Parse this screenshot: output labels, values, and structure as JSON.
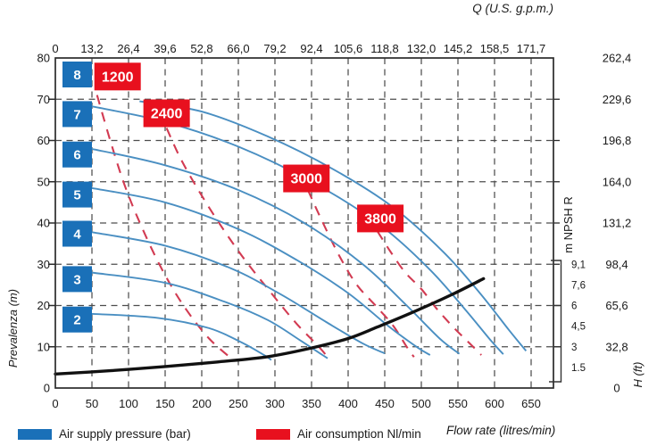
{
  "legend": {
    "air_supply_label": "Air supply pressure (bar)",
    "air_consumption_label": "Air consumption Nl/min"
  },
  "chart_data": {
    "type": "line",
    "title_top": "Q (U.S. g.p.m.)",
    "xlabel": "Flow rate (litres/min)",
    "ylabel_left": "Prevalenza (m)",
    "ylabel_right": "H (ft)",
    "npsh_axis_label": "m NPSH R",
    "xlim_litres_min": [
      0,
      680
    ],
    "ylim_m": [
      0,
      80
    ],
    "grid": true,
    "x_ticks_bottom_litres_min": [
      "0",
      "50",
      "100",
      "150",
      "200",
      "250",
      "300",
      "350",
      "400",
      "450",
      "500",
      "550",
      "600",
      "650"
    ],
    "x_ticks_top_usgpm": [
      "0",
      "13,2",
      "26,4",
      "39,6",
      "52,8",
      "66,0",
      "79,2",
      "92,4",
      "105,6",
      "118,8",
      "132,0",
      "145,2",
      "158,5",
      "171,7"
    ],
    "y_ticks_left_m": [
      "0",
      "10",
      "20",
      "30",
      "40",
      "50",
      "60",
      "70",
      "80"
    ],
    "y_ticks_right_ft": [
      "0",
      "32,8",
      "65,6",
      "98,4",
      "131,2",
      "164,0",
      "196,8",
      "229,6",
      "262,4"
    ],
    "npsh_scale_ticks": [
      {
        "label": "9,1",
        "at_m": 30
      },
      {
        "label": "7,6",
        "at_m": 25
      },
      {
        "label": "6",
        "at_m": 20
      },
      {
        "label": "4,5",
        "at_m": 15
      },
      {
        "label": "3",
        "at_m": 10
      },
      {
        "label": "1.5",
        "at_m": 5
      }
    ],
    "series_pressure_bar": [
      {
        "label": "8",
        "square_at_m": 76,
        "points": [
          [
            115,
            69.5
          ],
          [
            200,
            67
          ],
          [
            290,
            61
          ],
          [
            380,
            53
          ],
          [
            460,
            44
          ],
          [
            530,
            33
          ],
          [
            580,
            23
          ],
          [
            620,
            14
          ],
          [
            643,
            9
          ]
        ]
      },
      {
        "label": "7",
        "square_at_m": 66.4,
        "points": [
          [
            49,
            68.3
          ],
          [
            150,
            64.5
          ],
          [
            250,
            58.5
          ],
          [
            350,
            50
          ],
          [
            440,
            40
          ],
          [
            510,
            29
          ],
          [
            560,
            19
          ],
          [
            595,
            11.5
          ],
          [
            612,
            8.2
          ]
        ]
      },
      {
        "label": "6",
        "square_at_m": 56.6,
        "points": [
          [
            49,
            58
          ],
          [
            150,
            54
          ],
          [
            250,
            48
          ],
          [
            340,
            40
          ],
          [
            420,
            30
          ],
          [
            480,
            20
          ],
          [
            525,
            12
          ],
          [
            552,
            8.3
          ]
        ]
      },
      {
        "label": "5",
        "square_at_m": 46.9,
        "points": [
          [
            49,
            48.5
          ],
          [
            150,
            45
          ],
          [
            250,
            38.5
          ],
          [
            330,
            31
          ],
          [
            400,
            23
          ],
          [
            455,
            15
          ],
          [
            495,
            9.8
          ],
          [
            512,
            8
          ]
        ]
      },
      {
        "label": "4",
        "square_at_m": 37.4,
        "points": [
          [
            49,
            37.8
          ],
          [
            150,
            34.5
          ],
          [
            240,
            29
          ],
          [
            310,
            22.5
          ],
          [
            370,
            16
          ],
          [
            420,
            10.8
          ],
          [
            450,
            8.4
          ]
        ]
      },
      {
        "label": "3",
        "square_at_m": 26.4,
        "points": [
          [
            49,
            28
          ],
          [
            150,
            25.5
          ],
          [
            230,
            21
          ],
          [
            290,
            16.5
          ],
          [
            335,
            11.5
          ],
          [
            365,
            8
          ],
          [
            372,
            7.2
          ]
        ]
      },
      {
        "label": "2",
        "square_at_m": 16.6,
        "points": [
          [
            49,
            18
          ],
          [
            140,
            17
          ],
          [
            210,
            14.5
          ],
          [
            255,
            11
          ],
          [
            285,
            8
          ],
          [
            295,
            6.8
          ]
        ]
      }
    ],
    "series_consumption_nl_min": [
      {
        "label": "1200",
        "label_at": [
          85,
          75.5
        ],
        "points": [
          [
            57,
            71
          ],
          [
            75,
            60
          ],
          [
            95,
            49
          ],
          [
            118,
            39
          ],
          [
            145,
            29
          ],
          [
            175,
            20
          ],
          [
            210,
            12
          ],
          [
            245,
            6.5
          ]
        ]
      },
      {
        "label": "2400",
        "label_at": [
          152,
          66.6
        ],
        "points": [
          [
            152,
            63
          ],
          [
            170,
            56
          ],
          [
            192,
            49
          ],
          [
            220,
            41
          ],
          [
            255,
            32
          ],
          [
            295,
            23
          ],
          [
            330,
            15.5
          ],
          [
            360,
            10
          ],
          [
            372,
            7.5
          ]
        ]
      },
      {
        "label": "3000",
        "label_at": [
          343,
          50.8
        ],
        "points": [
          [
            345,
            48
          ],
          [
            363,
            41
          ],
          [
            388,
            32
          ],
          [
            412,
            25
          ],
          [
            440,
            19.5
          ],
          [
            462,
            15
          ],
          [
            480,
            10
          ],
          [
            490,
            7.5
          ]
        ]
      },
      {
        "label": "3800",
        "label_at": [
          444,
          41.1
        ],
        "points": [
          [
            440,
            38
          ],
          [
            458,
            33
          ],
          [
            478,
            28
          ],
          [
            500,
            24
          ],
          [
            522,
            19
          ],
          [
            545,
            14.5
          ],
          [
            565,
            11
          ],
          [
            582,
            8
          ]
        ]
      }
    ],
    "series_npsh_r": {
      "label": "NPSH R",
      "points": [
        [
          0,
          3.4
        ],
        [
          75,
          4.2
        ],
        [
          150,
          5.2
        ],
        [
          220,
          6.3
        ],
        [
          290,
          7.6
        ],
        [
          350,
          9.7
        ],
        [
          400,
          12
        ],
        [
          440,
          14.8
        ],
        [
          490,
          18.5
        ],
        [
          540,
          22.5
        ],
        [
          585,
          26.5
        ]
      ]
    },
    "colors": {
      "pressure_square": "#1a70b8",
      "pressure_curve": "#4a8fc2",
      "consumption_box": "#e8101e",
      "consumption_dash": "#d23b52",
      "npsh_curve": "#111111",
      "grid": "#4d4d4d",
      "border": "#2b2b2b"
    }
  }
}
